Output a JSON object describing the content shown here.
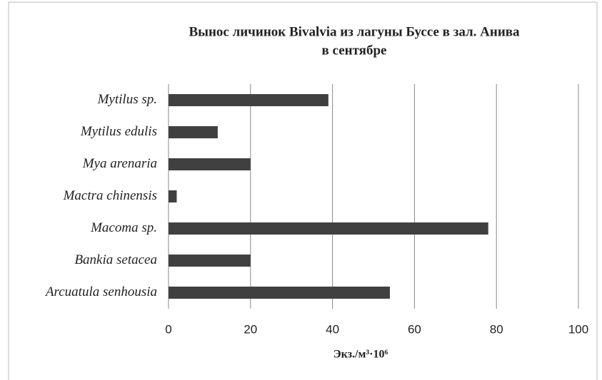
{
  "chart_data": {
    "type": "barh",
    "title": [
      "Вынос личинок Bivalvia из лагуны Буссе в зал. Анива",
      "в сентябре"
    ],
    "categories": [
      "Mytilus sp.",
      "Mytilus edulis",
      "Mya arenaria",
      "Mactra chinensis",
      "Macoma sp.",
      "Bankia setacea",
      "Arcuatula senhousia"
    ],
    "values": [
      39,
      12,
      20,
      2,
      78,
      20,
      54
    ],
    "color": "#404040",
    "xlim": [
      0,
      100
    ],
    "xticks": [
      0,
      20,
      40,
      60,
      80,
      100
    ],
    "grid": true,
    "xlabel": "Экз./м³·10⁶"
  }
}
